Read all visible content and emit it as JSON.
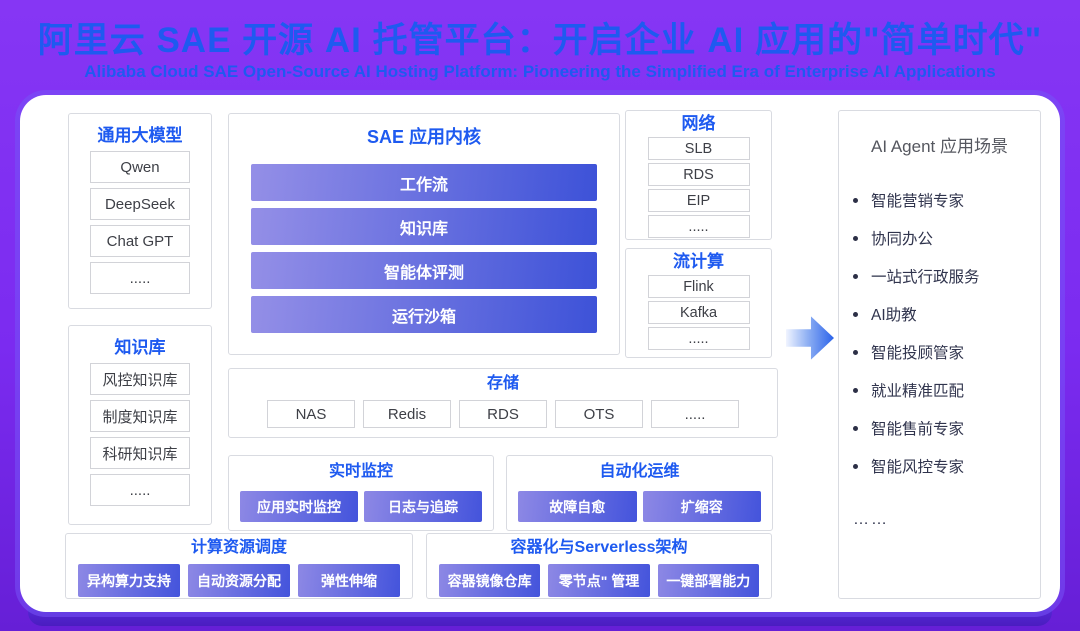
{
  "header": {
    "title": "阿里云 SAE 开源 AI 托管平台：开启企业 AI 应用的\"简单时代\"",
    "subtitle": "Alibaba Cloud SAE Open-Source AI Hosting Platform: Pioneering the Simplified Era of Enterprise AI Applications"
  },
  "colors": {
    "background_purple": "#7b2bf0",
    "accent_blue": "#1e5af0",
    "bar_gradient_start": "#948fe7",
    "bar_gradient_end": "#3d52d8",
    "panel_border": "#d9dbe1",
    "bottom_band": "#5c2ee2",
    "scenario_text": "#30344d"
  },
  "models": {
    "title": "通用大模型",
    "items": [
      "Qwen",
      "DeepSeek",
      "Chat GPT",
      "....."
    ]
  },
  "kb": {
    "title": "知识库",
    "items": [
      "风控知识库",
      "制度知识库",
      "科研知识库",
      "....."
    ]
  },
  "sae": {
    "title": "SAE 应用内核",
    "bars": [
      "工作流",
      "知识库",
      "智能体评测",
      "运行沙箱"
    ]
  },
  "network": {
    "title": "网络",
    "items": [
      "SLB",
      "RDS",
      "EIP",
      "....."
    ]
  },
  "stream": {
    "title": "流计算",
    "items": [
      "Flink",
      "Kafka",
      "....."
    ]
  },
  "storage": {
    "title": "存储",
    "items": [
      "NAS",
      "Redis",
      "RDS",
      "OTS",
      "....."
    ]
  },
  "monitor": {
    "title": "实时监控",
    "buttons": [
      "应用实时监控",
      "日志与追踪"
    ]
  },
  "ops": {
    "title": "自动化运维",
    "buttons": [
      "故障自愈",
      "扩缩容"
    ]
  },
  "compute": {
    "title": "计算资源调度",
    "buttons": [
      "异构算力支持",
      "自动资源分配",
      "弹性伸缩"
    ]
  },
  "container": {
    "title": "容器化与Serverless架构",
    "buttons": [
      "容器镜像仓库",
      "零节点\" 管理",
      "一键部署能力"
    ]
  },
  "scenarios": {
    "title": "AI Agent 应用场景",
    "items": [
      "智能营销专家",
      "协同办公",
      "一站式行政服务",
      "AI助教",
      "智能投顾管家",
      "就业精准匹配",
      "智能售前专家",
      "智能风控专家"
    ],
    "more": "……"
  }
}
